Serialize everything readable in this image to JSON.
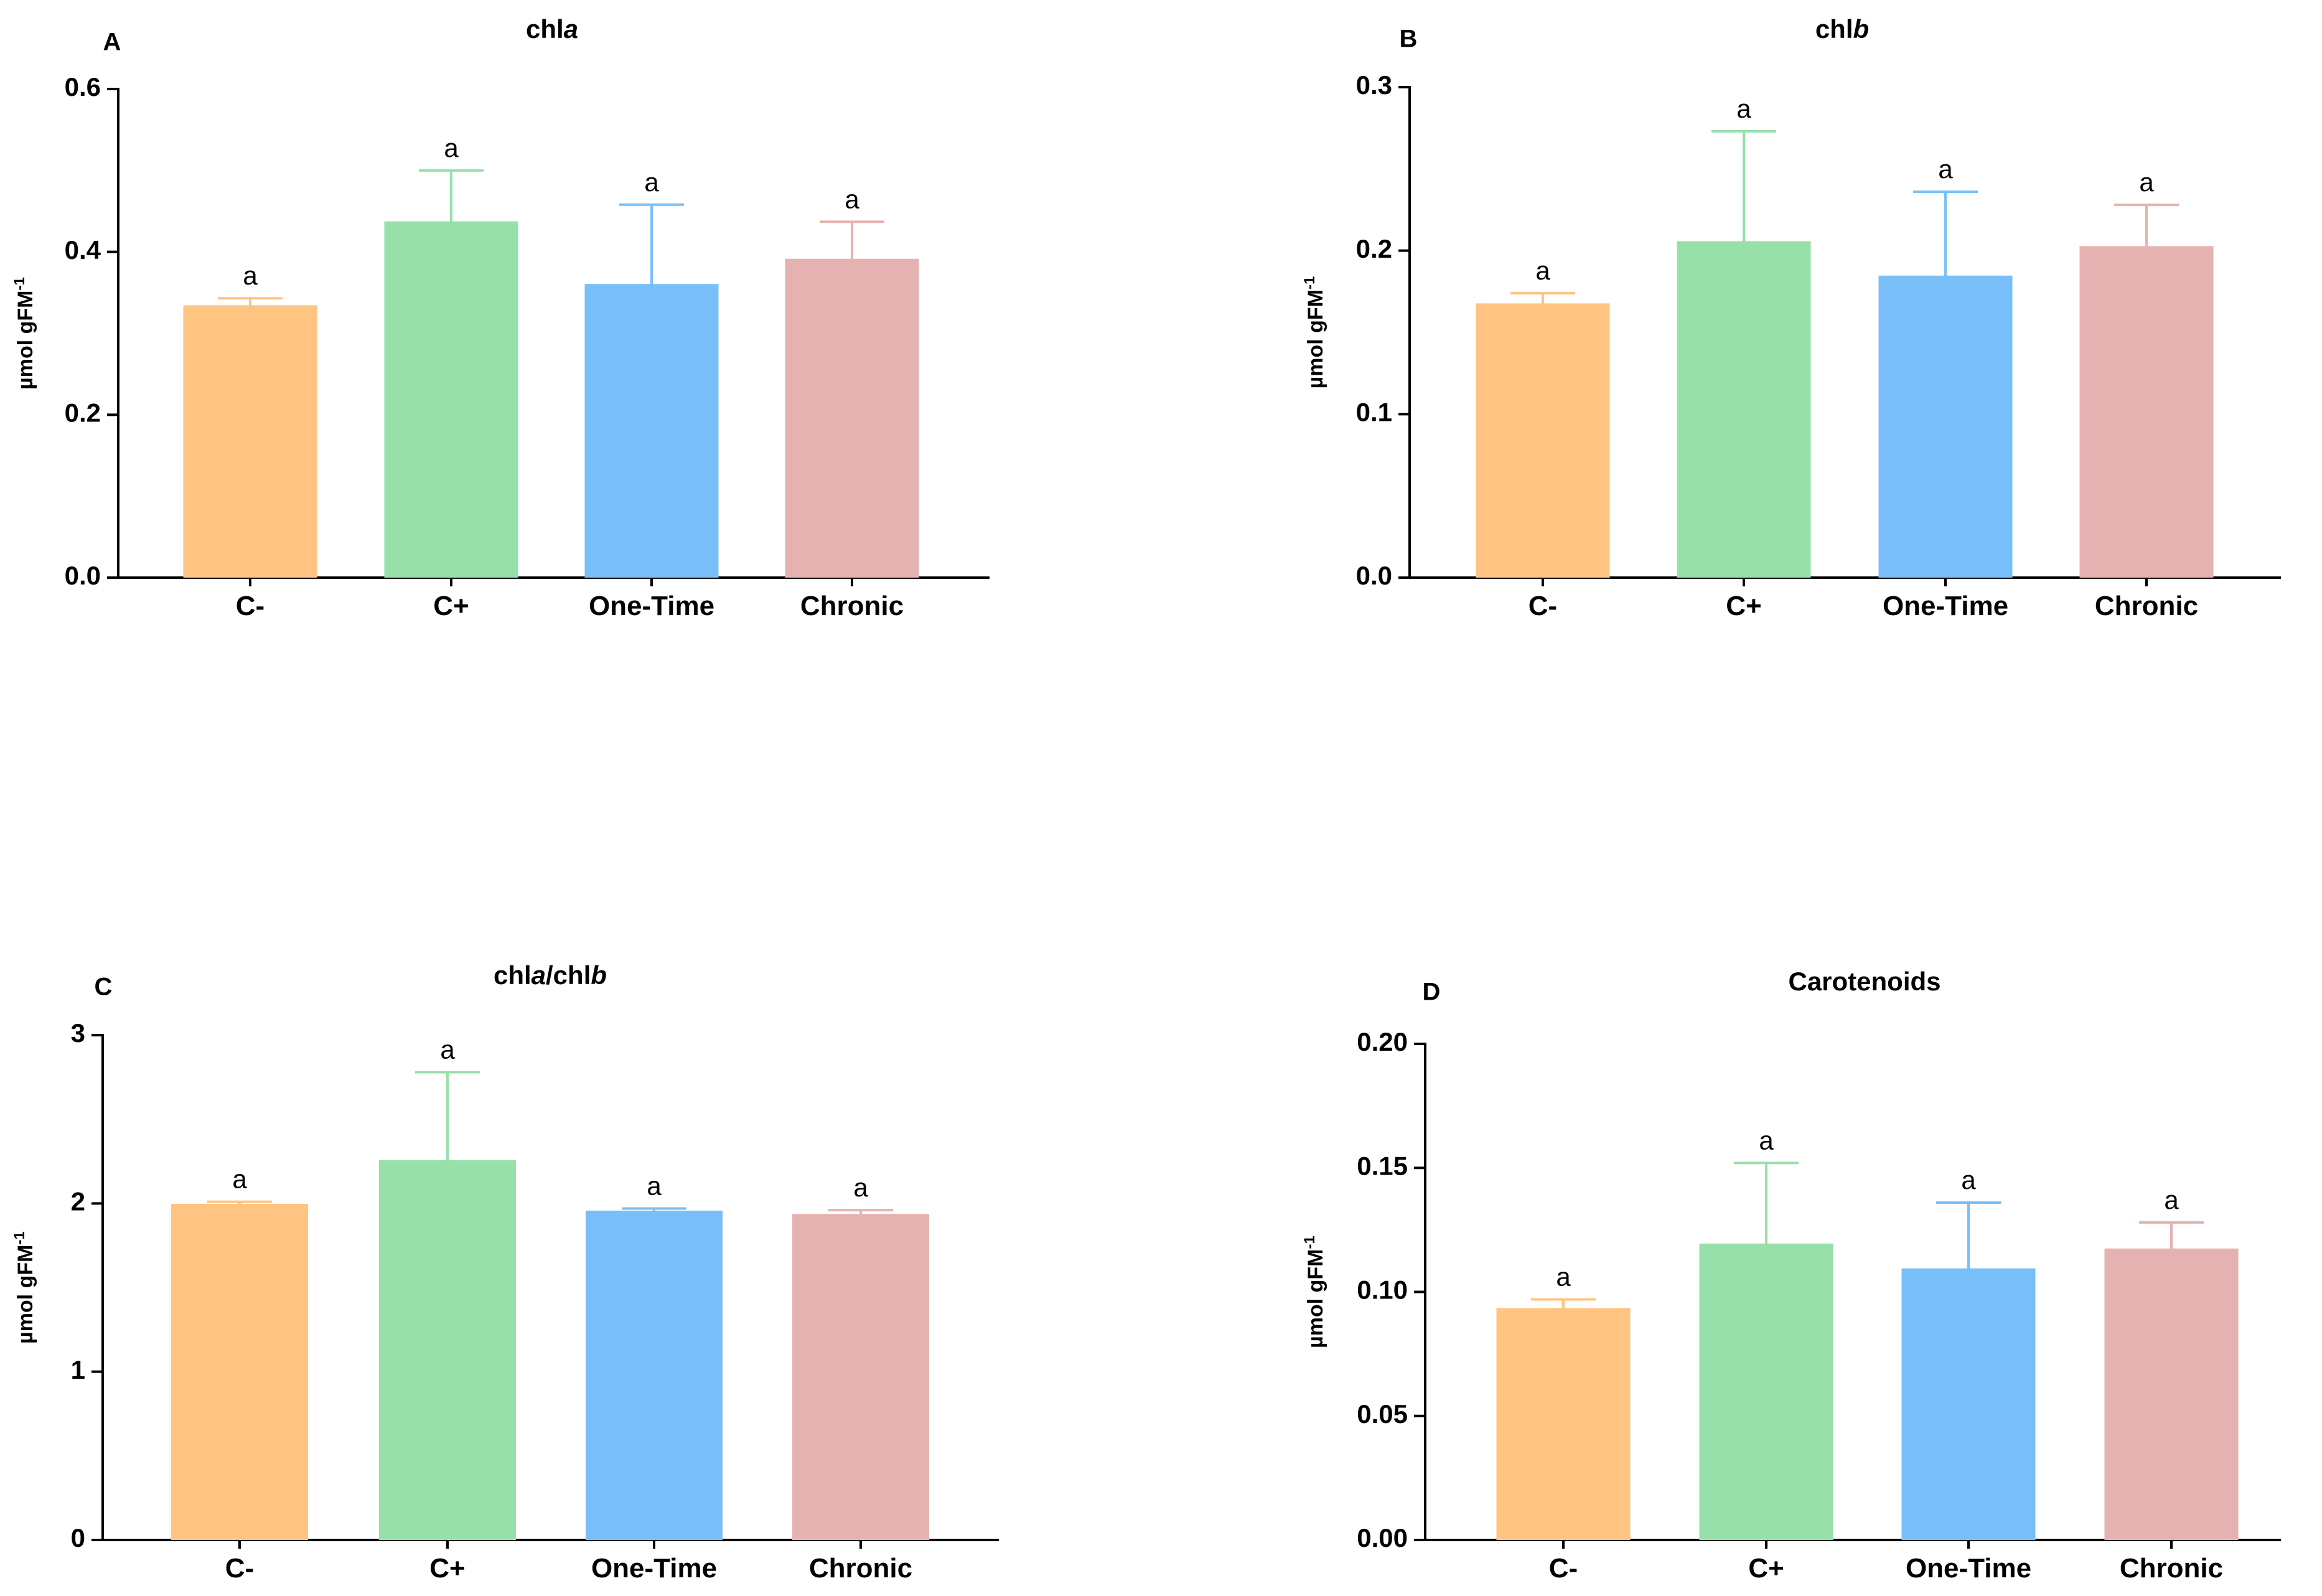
{
  "figure": {
    "categories": [
      "C-",
      "C+",
      "One-Time",
      "Chronic"
    ],
    "colors": {
      "bar_fills": [
        "#FFC382",
        "#97E0AA",
        "#78BFF9",
        "#E5B2B1"
      ],
      "error_bar_strokes": [
        "#FFC382",
        "#97E0AA",
        "#78BFF9",
        "#E5B2B1"
      ],
      "axis": "#000000",
      "text": "#000000"
    }
  },
  "chart_data": [
    {
      "panel_label": "A",
      "type": "bar",
      "title_parts": [
        {
          "text": "chl",
          "italic": false
        },
        {
          "text": "a",
          "italic": true
        }
      ],
      "ylabel": {
        "base": "µmol gFM",
        "superscript": "-1"
      },
      "xlabel": "",
      "categories": [
        "C-",
        "C+",
        "One-Time",
        "Chronic"
      ],
      "values": [
        0.333,
        0.436,
        0.359,
        0.39
      ],
      "errors": [
        0.01,
        0.064,
        0.099,
        0.047
      ],
      "significance": [
        "a",
        "a",
        "a",
        "a"
      ],
      "ylim": [
        0,
        0.6
      ],
      "yticks": [
        0.0,
        0.2,
        0.4,
        0.6
      ],
      "ytick_labels": [
        "0.0",
        "0.2",
        "0.4",
        "0.6"
      ],
      "grid": false
    },
    {
      "panel_label": "B",
      "type": "bar",
      "title_parts": [
        {
          "text": "chl",
          "italic": false
        },
        {
          "text": "b",
          "italic": true
        }
      ],
      "ylabel": {
        "base": "µmol gFM",
        "superscript": "-1"
      },
      "xlabel": "",
      "categories": [
        "C-",
        "C+",
        "One-Time",
        "Chronic"
      ],
      "values": [
        0.167,
        0.205,
        0.184,
        0.202
      ],
      "errors": [
        0.007,
        0.068,
        0.052,
        0.026
      ],
      "significance": [
        "a",
        "a",
        "a",
        "a"
      ],
      "ylim": [
        0,
        0.3
      ],
      "yticks": [
        0.0,
        0.1,
        0.2,
        0.3
      ],
      "ytick_labels": [
        "0.0",
        "0.1",
        "0.2",
        "0.3"
      ],
      "grid": false
    },
    {
      "panel_label": "C",
      "type": "bar",
      "title_parts": [
        {
          "text": "chl",
          "italic": false
        },
        {
          "text": "a",
          "italic": true
        },
        {
          "text": "/chl",
          "italic": false
        },
        {
          "text": "b",
          "italic": true
        }
      ],
      "ylabel": {
        "base": "µmol gFM",
        "superscript": "-1"
      },
      "xlabel": "",
      "categories": [
        "C-",
        "C+",
        "One-Time",
        "Chronic"
      ],
      "values": [
        1.99,
        2.25,
        1.95,
        1.93
      ],
      "errors": [
        0.02,
        0.53,
        0.02,
        0.03
      ],
      "significance": [
        "a",
        "a",
        "a",
        "a"
      ],
      "ylim": [
        0,
        3
      ],
      "yticks": [
        0,
        1,
        2,
        3
      ],
      "ytick_labels": [
        "0",
        "1",
        "2",
        "3"
      ],
      "grid": false
    },
    {
      "panel_label": "D",
      "type": "bar",
      "title_parts": [
        {
          "text": "Carotenoids",
          "italic": false
        }
      ],
      "ylabel": {
        "base": "µmol gFM",
        "superscript": "-1"
      },
      "xlabel": "",
      "categories": [
        "C-",
        "C+",
        "One-Time",
        "Chronic"
      ],
      "values": [
        0.093,
        0.119,
        0.109,
        0.117
      ],
      "errors": [
        0.004,
        0.033,
        0.027,
        0.011
      ],
      "significance": [
        "a",
        "a",
        "a",
        "a"
      ],
      "ylim": [
        0,
        0.2
      ],
      "yticks": [
        0.0,
        0.05,
        0.1,
        0.15,
        0.2
      ],
      "ytick_labels": [
        "0.00",
        "0.05",
        "0.10",
        "0.15",
        "0.20"
      ],
      "grid": false
    }
  ]
}
